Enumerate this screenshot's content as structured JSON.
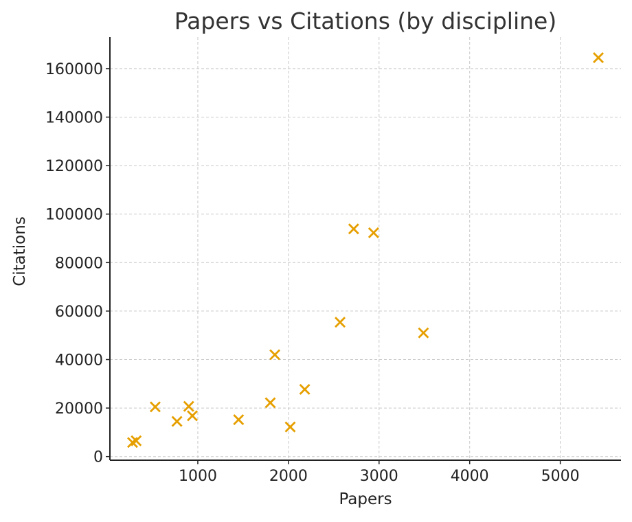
{
  "chart_data": {
    "type": "scatter",
    "title": "Papers vs Citations (by discipline)",
    "xlabel": "Papers",
    "ylabel": "Citations",
    "xlim": [
      30,
      5670
    ],
    "ylim": [
      -1500,
      173000
    ],
    "xticks": [
      1000,
      2000,
      3000,
      4000,
      5000
    ],
    "yticks": [
      0,
      20000,
      40000,
      60000,
      80000,
      100000,
      120000,
      140000,
      160000
    ],
    "grid": true,
    "marker": "x",
    "color": "#E69F00",
    "series": [
      {
        "x": [
          280,
          320,
          530,
          770,
          900,
          940,
          1450,
          1800,
          1850,
          2020,
          2180,
          2570,
          2720,
          2940,
          3490,
          5420
        ],
        "y": [
          5800,
          6500,
          20500,
          14500,
          20700,
          16800,
          15200,
          22200,
          42000,
          12200,
          27700,
          55400,
          93900,
          92300,
          51000,
          164500
        ]
      }
    ]
  }
}
